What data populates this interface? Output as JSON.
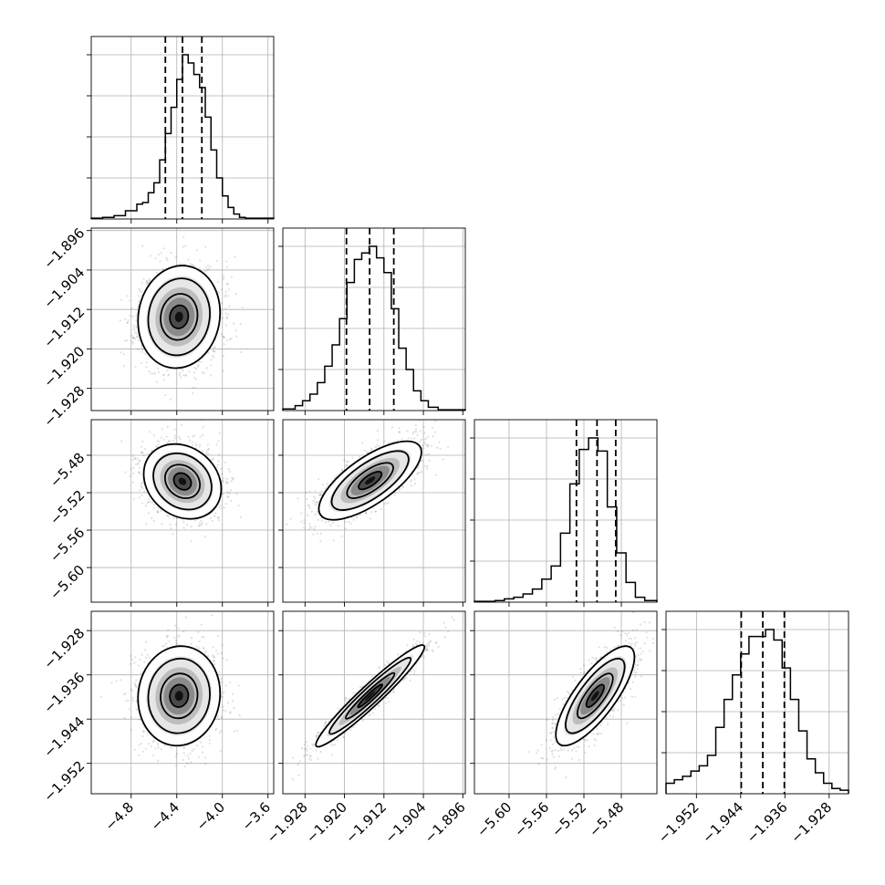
{
  "chart_data": {
    "type": "corner",
    "n_params": 4,
    "grid": true,
    "marginals": [
      {
        "range": [
          -5.15,
          -3.55
        ],
        "xticks": [
          -4.8,
          -4.4,
          -4.0,
          -3.6
        ],
        "xtick_labels": [
          "−4.8",
          "−4.4",
          "−4.0",
          "−3.6"
        ],
        "quantiles": [
          -4.5,
          -4.35,
          -4.18
        ],
        "bin_edges": [
          -5.15,
          -5.05,
          -4.95,
          -4.85,
          -4.75,
          -4.7,
          -4.65,
          -4.6,
          -4.55,
          -4.5,
          -4.45,
          -4.4,
          -4.35,
          -4.3,
          -4.25,
          -4.2,
          -4.15,
          -4.1,
          -4.05,
          -4.0,
          -3.95,
          -3.9,
          -3.85,
          -3.8,
          -3.55
        ],
        "counts": [
          0.005,
          0.01,
          0.02,
          0.05,
          0.09,
          0.1,
          0.16,
          0.22,
          0.36,
          0.52,
          0.68,
          0.85,
          1.0,
          0.95,
          0.88,
          0.8,
          0.62,
          0.42,
          0.25,
          0.14,
          0.07,
          0.03,
          0.01,
          0.005
        ]
      },
      {
        "range": [
          -1.9325,
          -1.8955
        ],
        "xticks": [
          -1.928,
          -1.92,
          -1.912,
          -1.904,
          -1.896
        ],
        "xtick_labels": [
          "−1.928",
          "−1.920",
          "−1.912",
          "−1.904",
          "−1.896"
        ],
        "quantiles": [
          -1.9196,
          -1.9149,
          -1.91
        ],
        "bin_edges": [
          -1.9325,
          -1.93,
          -1.9285,
          -1.927,
          -1.9255,
          -1.924,
          -1.9225,
          -1.921,
          -1.9195,
          -1.918,
          -1.9165,
          -1.915,
          -1.9135,
          -1.912,
          -1.9105,
          -1.909,
          -1.9075,
          -1.906,
          -1.9045,
          -1.903,
          -1.901,
          -1.8955
        ],
        "counts": [
          0.01,
          0.03,
          0.06,
          0.1,
          0.17,
          0.27,
          0.4,
          0.56,
          0.78,
          0.92,
          0.96,
          1.0,
          0.93,
          0.84,
          0.62,
          0.38,
          0.25,
          0.12,
          0.06,
          0.02,
          0.005
        ]
      },
      {
        "range": [
          -5.637,
          -5.442
        ],
        "xticks": [
          -5.6,
          -5.56,
          -5.52,
          -5.48
        ],
        "xtick_labels": [
          "−5.60",
          "−5.56",
          "−5.52",
          "−5.48"
        ],
        "quantiles": [
          -5.528,
          -5.506,
          -5.486
        ],
        "bin_edges": [
          -5.637,
          -5.615,
          -5.605,
          -5.595,
          -5.585,
          -5.575,
          -5.565,
          -5.555,
          -5.545,
          -5.535,
          -5.525,
          -5.515,
          -5.505,
          -5.495,
          -5.485,
          -5.475,
          -5.465,
          -5.455,
          -5.442
        ],
        "counts": [
          0.005,
          0.01,
          0.02,
          0.03,
          0.05,
          0.08,
          0.14,
          0.22,
          0.42,
          0.72,
          0.93,
          1.0,
          0.92,
          0.58,
          0.3,
          0.12,
          0.03,
          0.01
        ]
      },
      {
        "range": [
          -1.9575,
          -1.9245
        ],
        "xticks": [
          -1.952,
          -1.944,
          -1.936,
          -1.928
        ],
        "xtick_labels": [
          "−1.952",
          "−1.944",
          "−1.936",
          "−1.928"
        ],
        "quantiles": [
          -1.9439,
          -1.94,
          -1.9361
        ],
        "bin_edges": [
          -1.9575,
          -1.956,
          -1.9545,
          -1.953,
          -1.9515,
          -1.95,
          -1.9485,
          -1.947,
          -1.9455,
          -1.944,
          -1.9425,
          -1.941,
          -1.9395,
          -1.938,
          -1.9365,
          -1.935,
          -1.9335,
          -1.932,
          -1.9305,
          -1.929,
          -1.9275,
          -1.926,
          -1.9245
        ],
        "counts": [
          0.06,
          0.08,
          0.1,
          0.13,
          0.16,
          0.22,
          0.38,
          0.54,
          0.68,
          0.8,
          0.9,
          0.9,
          0.94,
          0.88,
          0.72,
          0.54,
          0.36,
          0.2,
          0.12,
          0.06,
          0.03,
          0.02
        ]
      }
    ],
    "yaxes": [
      {
        "row": 1,
        "yticks": [
          -1.928,
          -1.92,
          -1.912,
          -1.904,
          -1.896
        ],
        "ytick_labels": [
          "−1.928",
          "−1.920",
          "−1.912",
          "−1.904",
          "−1.896"
        ]
      },
      {
        "row": 2,
        "yticks": [
          -5.6,
          -5.56,
          -5.52,
          -5.48
        ],
        "ytick_labels": [
          "−5.60",
          "−5.56",
          "−5.52",
          "−5.48"
        ]
      },
      {
        "row": 3,
        "yticks": [
          -1.952,
          -1.944,
          -1.936,
          -1.928
        ],
        "ytick_labels": [
          "−1.952",
          "−1.944",
          "−1.936",
          "−1.928"
        ]
      }
    ],
    "joint": [
      {
        "row": 1,
        "col": 0,
        "mean": [
          -4.38,
          -1.9135
        ],
        "sd": [
          0.18,
          0.0052
        ],
        "corr": 0.08,
        "seed": 11
      },
      {
        "row": 2,
        "col": 0,
        "mean": [
          -4.35,
          -5.508
        ],
        "sd": [
          0.17,
          0.02
        ],
        "corr": -0.2,
        "seed": 23
      },
      {
        "row": 2,
        "col": 1,
        "mean": [
          -1.9148,
          -5.507
        ],
        "sd": [
          0.0052,
          0.021
        ],
        "corr": 0.72,
        "seed": 37
      },
      {
        "row": 3,
        "col": 0,
        "mean": [
          -4.38,
          -1.9398
        ],
        "sd": [
          0.18,
          0.0045
        ],
        "corr": 0.05,
        "seed": 41
      },
      {
        "row": 3,
        "col": 1,
        "mean": [
          -1.9148,
          -1.9398
        ],
        "sd": [
          0.0055,
          0.0046
        ],
        "corr": 0.96,
        "seed": 53
      },
      {
        "row": 3,
        "col": 2,
        "mean": [
          -5.508,
          -1.9398
        ],
        "sd": [
          0.021,
          0.0045
        ],
        "corr": 0.78,
        "seed": 67
      }
    ]
  }
}
